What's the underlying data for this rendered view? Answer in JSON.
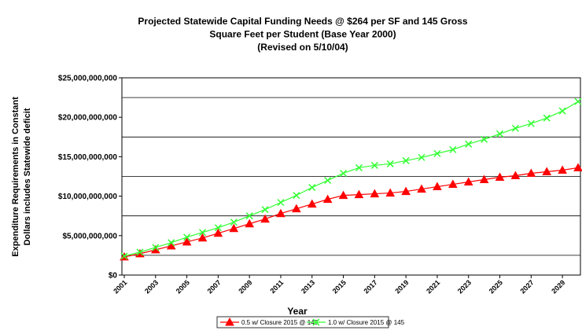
{
  "chart_data": {
    "type": "line",
    "title": [
      "Projected Statewide Capital Funding Needs @ $264 per SF and 145 Gross",
      "Square Feet per Student (Base Year 2000)",
      "(Revised on 5/10/04)"
    ],
    "y_label": [
      "Expenditure Requirements in Constant",
      "Dollars includes Statewide deficit"
    ],
    "x_label": "Year",
    "x": [
      2001,
      2002,
      2003,
      2004,
      2005,
      2006,
      2007,
      2008,
      2009,
      2010,
      2011,
      2012,
      2013,
      2014,
      2015,
      2016,
      2017,
      2018,
      2019,
      2020,
      2021,
      2022,
      2023,
      2024,
      2025,
      2026,
      2027,
      2028,
      2029,
      2030
    ],
    "xlim": [
      2001,
      2030
    ],
    "xticks": [
      2001,
      2003,
      2005,
      2007,
      2009,
      2011,
      2013,
      2015,
      2017,
      2019,
      2021,
      2023,
      2025,
      2027,
      2029
    ],
    "ylim": [
      0,
      25000000000
    ],
    "yticks": [
      {
        "value": 0,
        "label": "$0"
      },
      {
        "value": 5000000000,
        "label": "$5,000,000,000"
      },
      {
        "value": 10000000000,
        "label": "$10,000,000,000"
      },
      {
        "value": 15000000000,
        "label": "$15,000,000,000"
      },
      {
        "value": 20000000000,
        "label": "$20,000,000,000"
      },
      {
        "value": 25000000000,
        "label": "$25,000,000,000"
      }
    ],
    "ygrid": [
      2500000000,
      7500000000,
      12500000000,
      17500000000,
      22500000000
    ],
    "legend": "bottom",
    "series": [
      {
        "name": "0.5 w/ Closure 2015 @ 145",
        "color": "#ff0000",
        "marker": "triangle",
        "values": [
          2300000000,
          2700000000,
          3200000000,
          3700000000,
          4200000000,
          4700000000,
          5300000000,
          5900000000,
          6500000000,
          7100000000,
          7800000000,
          8400000000,
          9000000000,
          9600000000,
          10100000000,
          10200000000,
          10300000000,
          10400000000,
          10600000000,
          10900000000,
          11200000000,
          11500000000,
          11800000000,
          12100000000,
          12400000000,
          12600000000,
          12900000000,
          13100000000,
          13300000000,
          13600000000
        ]
      },
      {
        "name": "1.0 w/ Closure 2015 @ 145",
        "color": "#33ff33",
        "marker": "x",
        "values": [
          2400000000,
          2900000000,
          3500000000,
          4100000000,
          4800000000,
          5400000000,
          6000000000,
          6700000000,
          7500000000,
          8300000000,
          9200000000,
          10100000000,
          11100000000,
          12000000000,
          12900000000,
          13600000000,
          13900000000,
          14100000000,
          14500000000,
          14900000000,
          15400000000,
          15900000000,
          16600000000,
          17200000000,
          17900000000,
          18600000000,
          19200000000,
          19900000000,
          20800000000,
          22000000000
        ]
      }
    ]
  }
}
